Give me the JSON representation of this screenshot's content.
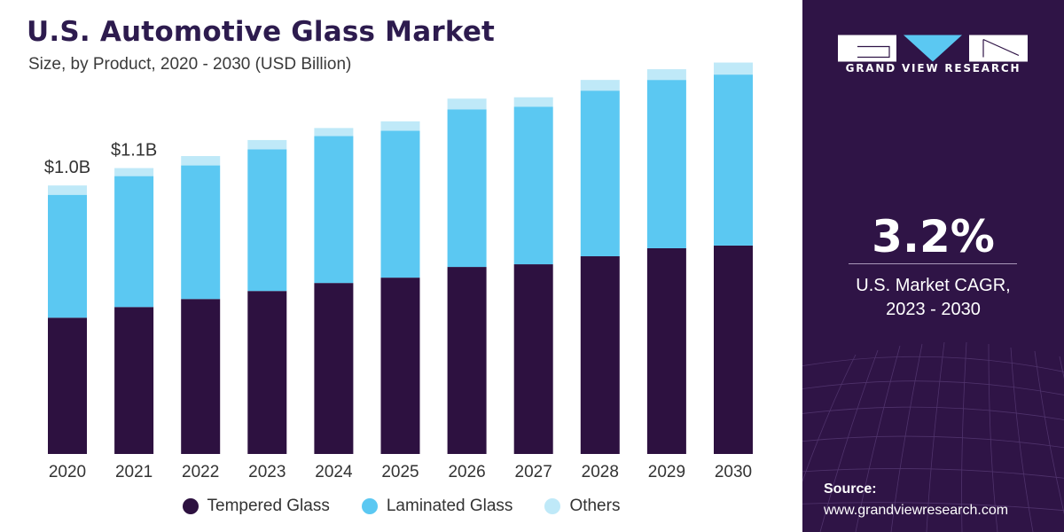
{
  "title": "U.S. Automotive Glass Market",
  "subtitle": "Size, by Product, 2020 - 2030 (USD Billion)",
  "colors": {
    "tempered": "#2d1140",
    "laminated": "#5bc8f2",
    "others": "#bfe9f8",
    "sidebar": "#2f1446"
  },
  "legend": [
    {
      "label": "Tempered Glass",
      "color": "#2d1140"
    },
    {
      "label": "Laminated Glass",
      "color": "#5bc8f2"
    },
    {
      "label": "Others",
      "color": "#bfe9f8"
    }
  ],
  "chart_data": {
    "type": "bar",
    "stacked": true,
    "categories": [
      "2020",
      "2021",
      "2022",
      "2023",
      "2024",
      "2025",
      "2026",
      "2027",
      "2028",
      "2029",
      "2030"
    ],
    "series": [
      {
        "name": "Tempered Glass",
        "values": [
          0.51,
          0.55,
          0.58,
          0.61,
          0.64,
          0.66,
          0.7,
          0.71,
          0.74,
          0.77,
          0.78
        ]
      },
      {
        "name": "Laminated Glass",
        "values": [
          0.46,
          0.49,
          0.5,
          0.53,
          0.55,
          0.55,
          0.59,
          0.59,
          0.62,
          0.63,
          0.64
        ]
      },
      {
        "name": "Others",
        "values": [
          0.035,
          0.03,
          0.035,
          0.035,
          0.03,
          0.035,
          0.04,
          0.035,
          0.04,
          0.04,
          0.045
        ]
      }
    ],
    "data_labels": [
      "$1.0B",
      "$1.1B"
    ],
    "ylim": [
      0,
      1.5
    ]
  },
  "sidebar": {
    "brand": "GRAND VIEW RESEARCH",
    "cagr_value": "3.2%",
    "cagr_label_line1": "U.S. Market CAGR,",
    "cagr_label_line2": "2023 - 2030",
    "source_label": "Source:",
    "source_url": "www.grandviewresearch.com"
  }
}
